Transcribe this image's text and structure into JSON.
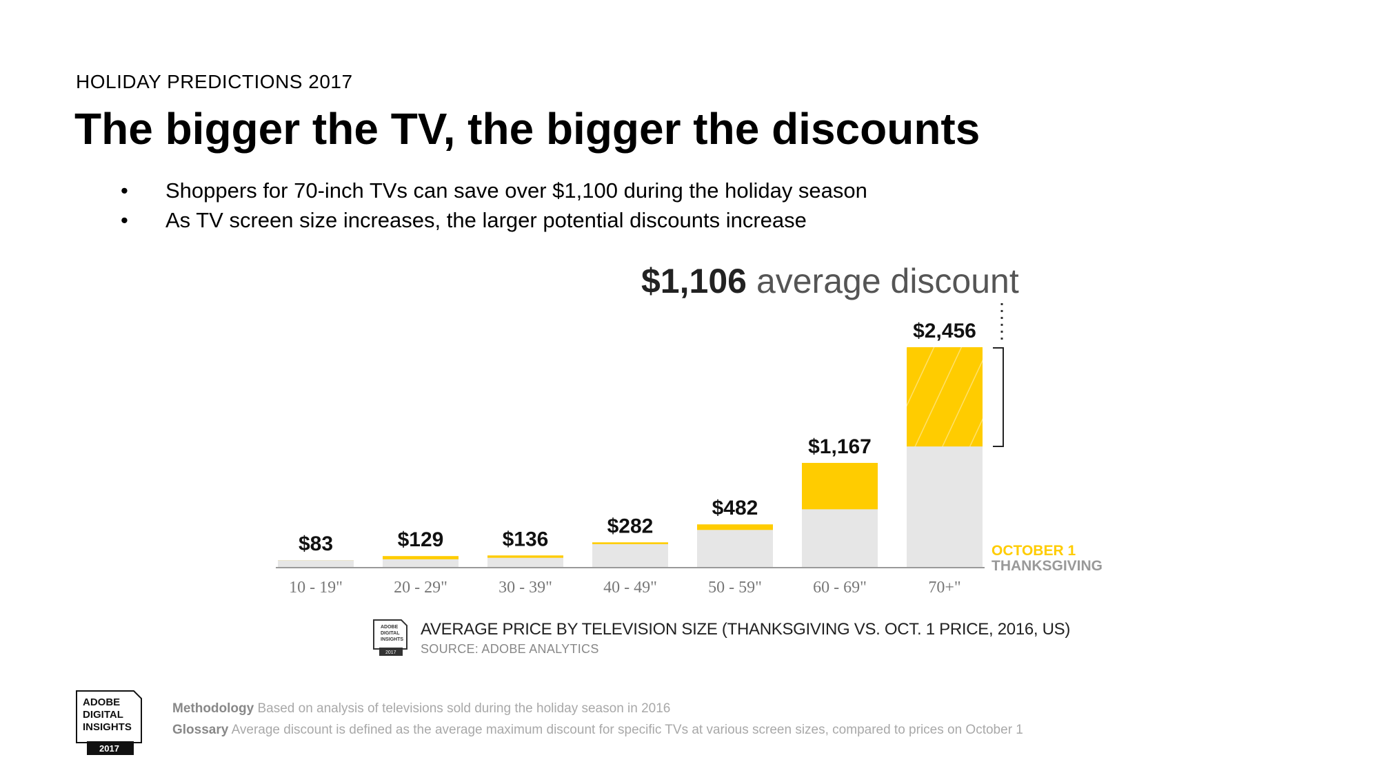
{
  "header": {
    "eyebrow": "HOLIDAY PREDICTIONS 2017",
    "title": "The bigger the TV, the bigger the discounts"
  },
  "bullets": [
    "Shoppers for 70-inch TVs can save over $1,100 during the holiday season",
    "As TV screen size increases, the larger potential discounts increase"
  ],
  "bullet_glyph": "•",
  "callout": {
    "amount": "$1,106",
    "text": "average discount"
  },
  "legend": {
    "october": "OCTOBER 1",
    "thanksgiving": "THANKSGIVING"
  },
  "colors": {
    "october": "#FFCC00",
    "thanksgiving": "#E6E6E6",
    "axis": "#999999"
  },
  "chart_data": {
    "type": "bar",
    "title": "AVERAGE PRICE BY TELEVISION SIZE (THANKSGIVING VS. OCT. 1 PRICE, 2016, US)",
    "source": "SOURCE: ADOBE ANALYTICS",
    "categories": [
      "10 - 19\"",
      "20 - 29\"",
      "30 - 39\"",
      "40 - 49\"",
      "50 - 59\"",
      "60 - 69\"",
      "70+\""
    ],
    "series": [
      {
        "name": "THANKSGIVING",
        "values": [
          83,
          93,
          110,
          262,
          420,
          650,
          1350
        ]
      },
      {
        "name": "OCTOBER 1",
        "values": [
          83,
          129,
          136,
          282,
          482,
          1167,
          2456
        ]
      }
    ],
    "value_labels": [
      "$83",
      "$129",
      "$136",
      "$282",
      "$482",
      "$1,167",
      "$2,456"
    ],
    "ylim": [
      0,
      2456
    ],
    "stacked_overlay": true
  },
  "badge": {
    "line1": "ADOBE",
    "line2": "DIGITAL",
    "line3": "INSIGHTS",
    "year": "2017"
  },
  "footer": {
    "methodology_label": "Methodology",
    "methodology_text": "Based on analysis of televisions sold during the holiday season in 2016",
    "glossary_label": "Glossary",
    "glossary_text": "Average discount is defined as the average maximum discount for specific TVs at various screen sizes, compared to prices on October 1"
  }
}
